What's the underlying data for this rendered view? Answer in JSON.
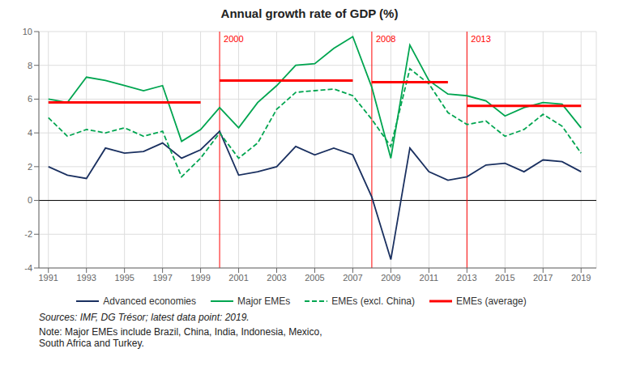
{
  "chart_data": {
    "type": "line",
    "title": "Annual growth rate of GDP (%)",
    "x": [
      1991,
      1992,
      1993,
      1994,
      1995,
      1996,
      1997,
      1998,
      1999,
      2000,
      2001,
      2002,
      2003,
      2004,
      2005,
      2006,
      2007,
      2008,
      2009,
      2010,
      2011,
      2012,
      2013,
      2014,
      2015,
      2016,
      2017,
      2018,
      2019
    ],
    "series": [
      {
        "name": "Advanced economies",
        "color": "#1a3060",
        "line_style": "solid",
        "values": [
          2.0,
          1.5,
          1.3,
          3.1,
          2.8,
          2.9,
          3.4,
          2.5,
          3.0,
          4.1,
          1.5,
          1.7,
          2.0,
          3.2,
          2.7,
          3.1,
          2.7,
          0.2,
          -3.5,
          3.1,
          1.7,
          1.2,
          1.4,
          2.1,
          2.2,
          1.7,
          2.4,
          2.3,
          1.7
        ]
      },
      {
        "name": "Major EMEs",
        "color": "#00a550",
        "line_style": "solid",
        "values": [
          6.0,
          5.8,
          7.3,
          7.1,
          6.8,
          6.5,
          6.8,
          3.5,
          4.2,
          5.5,
          4.3,
          5.8,
          6.8,
          8.0,
          8.1,
          9.0,
          9.7,
          6.7,
          2.5,
          9.2,
          7.1,
          6.3,
          6.2,
          5.9,
          5.0,
          5.5,
          5.8,
          5.7,
          4.3
        ]
      },
      {
        "name": "EMEs (excl. China)",
        "color": "#00a550",
        "line_style": "dashed",
        "values": [
          4.9,
          3.8,
          4.2,
          4.0,
          4.3,
          3.8,
          4.1,
          1.4,
          2.5,
          4.0,
          2.5,
          3.4,
          5.4,
          6.4,
          6.5,
          6.6,
          6.2,
          4.8,
          3.2,
          7.8,
          6.9,
          5.2,
          4.5,
          4.7,
          3.8,
          4.2,
          5.1,
          4.4,
          2.8
        ]
      }
    ],
    "average_segments": {
      "name": "EMEs (average)",
      "color": "#ff0000",
      "segments": [
        {
          "x_start": 1991,
          "x_end": 1999,
          "y": 5.8
        },
        {
          "x_start": 2000,
          "x_end": 2007,
          "y": 7.1
        },
        {
          "x_start": 2008,
          "x_end": 2012,
          "y": 7.0
        },
        {
          "x_start": 2013,
          "x_end": 2019,
          "y": 5.6
        }
      ]
    },
    "vertical_lines": {
      "color": "#ff0000",
      "lines": [
        {
          "x": 2000,
          "label": "2000"
        },
        {
          "x": 2008,
          "label": "2008"
        },
        {
          "x": 2013,
          "label": "2013"
        }
      ]
    },
    "hlines": [
      0
    ],
    "xlim": [
      1990.5,
      2019.8
    ],
    "xticks": [
      1991,
      1993,
      1995,
      1997,
      1999,
      2001,
      2003,
      2005,
      2007,
      2009,
      2011,
      2013,
      2015,
      2017,
      2019
    ],
    "ylim": [
      -4,
      10
    ],
    "yticks": [
      -4,
      -2,
      0,
      2,
      4,
      6,
      8,
      10
    ],
    "grid": true,
    "legend": "bottom",
    "source": "Sources: IMF, DG Trésor; latest data point: 2019.",
    "notes": [
      "Note: Major EMEs include Brazil, China, India, Indonesia, Mexico,",
      "South Africa and Turkey."
    ]
  }
}
